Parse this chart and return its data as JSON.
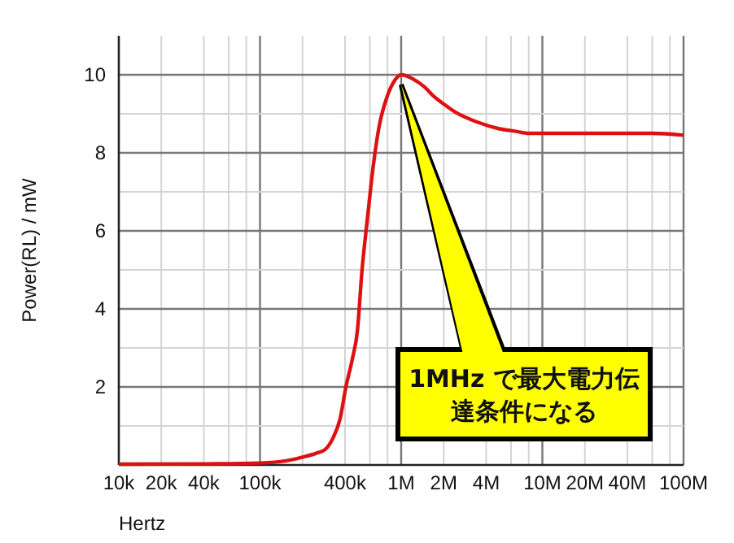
{
  "chart_data": {
    "type": "line",
    "xlabel": "Hertz",
    "ylabel": "Power(RL) / mW",
    "log": "x",
    "grid": true,
    "marker": "none",
    "line_style": "solid",
    "xlim": [
      10000,
      100000000
    ],
    "ylim": [
      0,
      11
    ],
    "xticks": [
      {
        "value": 10000,
        "label": "10k"
      },
      {
        "value": 20000,
        "label": "20k"
      },
      {
        "value": 40000,
        "label": "40k"
      },
      {
        "value": 60000,
        "label": null
      },
      {
        "value": 80000,
        "label": null
      },
      {
        "value": 100000,
        "label": "100k"
      },
      {
        "value": 200000,
        "label": null
      },
      {
        "value": 400000,
        "label": "400k"
      },
      {
        "value": 600000,
        "label": null
      },
      {
        "value": 800000,
        "label": null
      },
      {
        "value": 1000000,
        "label": "1M"
      },
      {
        "value": 2000000,
        "label": "2M"
      },
      {
        "value": 4000000,
        "label": "4M"
      },
      {
        "value": 6000000,
        "label": null
      },
      {
        "value": 8000000,
        "label": null
      },
      {
        "value": 10000000,
        "label": "10M"
      },
      {
        "value": 20000000,
        "label": "20M"
      },
      {
        "value": 40000000,
        "label": "40M"
      },
      {
        "value": 60000000,
        "label": null
      },
      {
        "value": 80000000,
        "label": null
      },
      {
        "value": 100000000,
        "label": "100M"
      }
    ],
    "yticks": [
      {
        "value": 1,
        "label": null
      },
      2,
      {
        "value": 3,
        "label": null
      },
      4,
      {
        "value": 5,
        "label": null
      },
      6,
      {
        "value": 7,
        "label": null
      },
      8,
      {
        "value": 9,
        "label": null
      },
      10
    ],
    "series": [
      {
        "color": "#dd1111",
        "x": [
          10000,
          50000,
          100000,
          150000,
          200000,
          250000,
          290000,
          330000,
          370000,
          406000,
          450000,
          490000,
          527000,
          580000,
          636000,
          700000,
          788000,
          880000,
          1000000,
          1200000,
          1450000,
          1700000,
          2000000,
          2400000,
          2900000,
          3500000,
          4900000,
          6500000,
          8000000,
          15000000,
          30000000,
          60000000,
          100000000
        ],
        "values": [
          0.02,
          0.03,
          0.05,
          0.1,
          0.2,
          0.3,
          0.4,
          0.7,
          1.2,
          2.0,
          2.7,
          3.45,
          4.95,
          6.4,
          7.7,
          8.7,
          9.4,
          9.8,
          10,
          9.9,
          9.7,
          9.45,
          9.25,
          9.05,
          8.9,
          8.78,
          8.62,
          8.55,
          8.5,
          8.5,
          8.5,
          8.5,
          8.45
        ]
      }
    ],
    "annotations": [
      {
        "text": "1MHz で最大電力伝達条件になる",
        "x": 1000000,
        "y": 10
      }
    ]
  }
}
